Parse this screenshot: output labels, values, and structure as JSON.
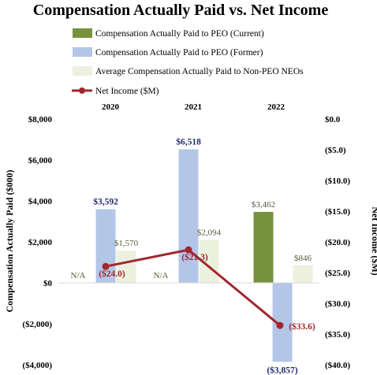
{
  "chart_data": {
    "type": "bar",
    "title": "Compensation Actually Paid vs. Net Income",
    "categories": [
      "2020",
      "2021",
      "2022"
    ],
    "ylabel": "Compensation Actually Paid ($000)",
    "y2label": "Net Income ($M)",
    "ylim": [
      -4000,
      8000
    ],
    "y2lim": [
      -40,
      0
    ],
    "yticks": [
      "$8,000",
      "$6,000",
      "$4,000",
      "$2,000",
      "$0",
      "($2,000)",
      "($4,000)"
    ],
    "y2ticks": [
      "$0.0",
      "($5.0)",
      "($10.0)",
      "($15.0)",
      "($20.0)",
      "($25.0)",
      "($30.0)",
      "($35.0)",
      "($40.0)"
    ],
    "series": [
      {
        "name": "Compensation Actually Paid to PEO (Current)",
        "type": "bar",
        "color": "#76923c",
        "values": [
          null,
          null,
          3462
        ],
        "labels": [
          "",
          "",
          "$3,462"
        ]
      },
      {
        "name": "Compensation Actually Paid to PEO (Former)",
        "type": "bar",
        "color": "#b4c6e7",
        "values": [
          3592,
          6518,
          -3857
        ],
        "labels": [
          "$3,592",
          "$6,518",
          "($3,857)"
        ]
      },
      {
        "name": "Average Compensation Actually Paid to Non-PEO NEOs",
        "type": "bar",
        "color": "#ebf1de",
        "values": [
          1570,
          2094,
          846
        ],
        "labels": [
          "$1,570",
          "$2,094",
          "$846"
        ]
      },
      {
        "name": "Net Income ($M)",
        "type": "line",
        "axis": "secondary",
        "color": "#a0282d",
        "values": [
          -24.0,
          -21.3,
          -33.6
        ],
        "labels": [
          "($24.0)",
          "($21.3)",
          "($33.6)"
        ]
      }
    ],
    "na_label": "N/A",
    "legend": "top",
    "grid": false
  }
}
